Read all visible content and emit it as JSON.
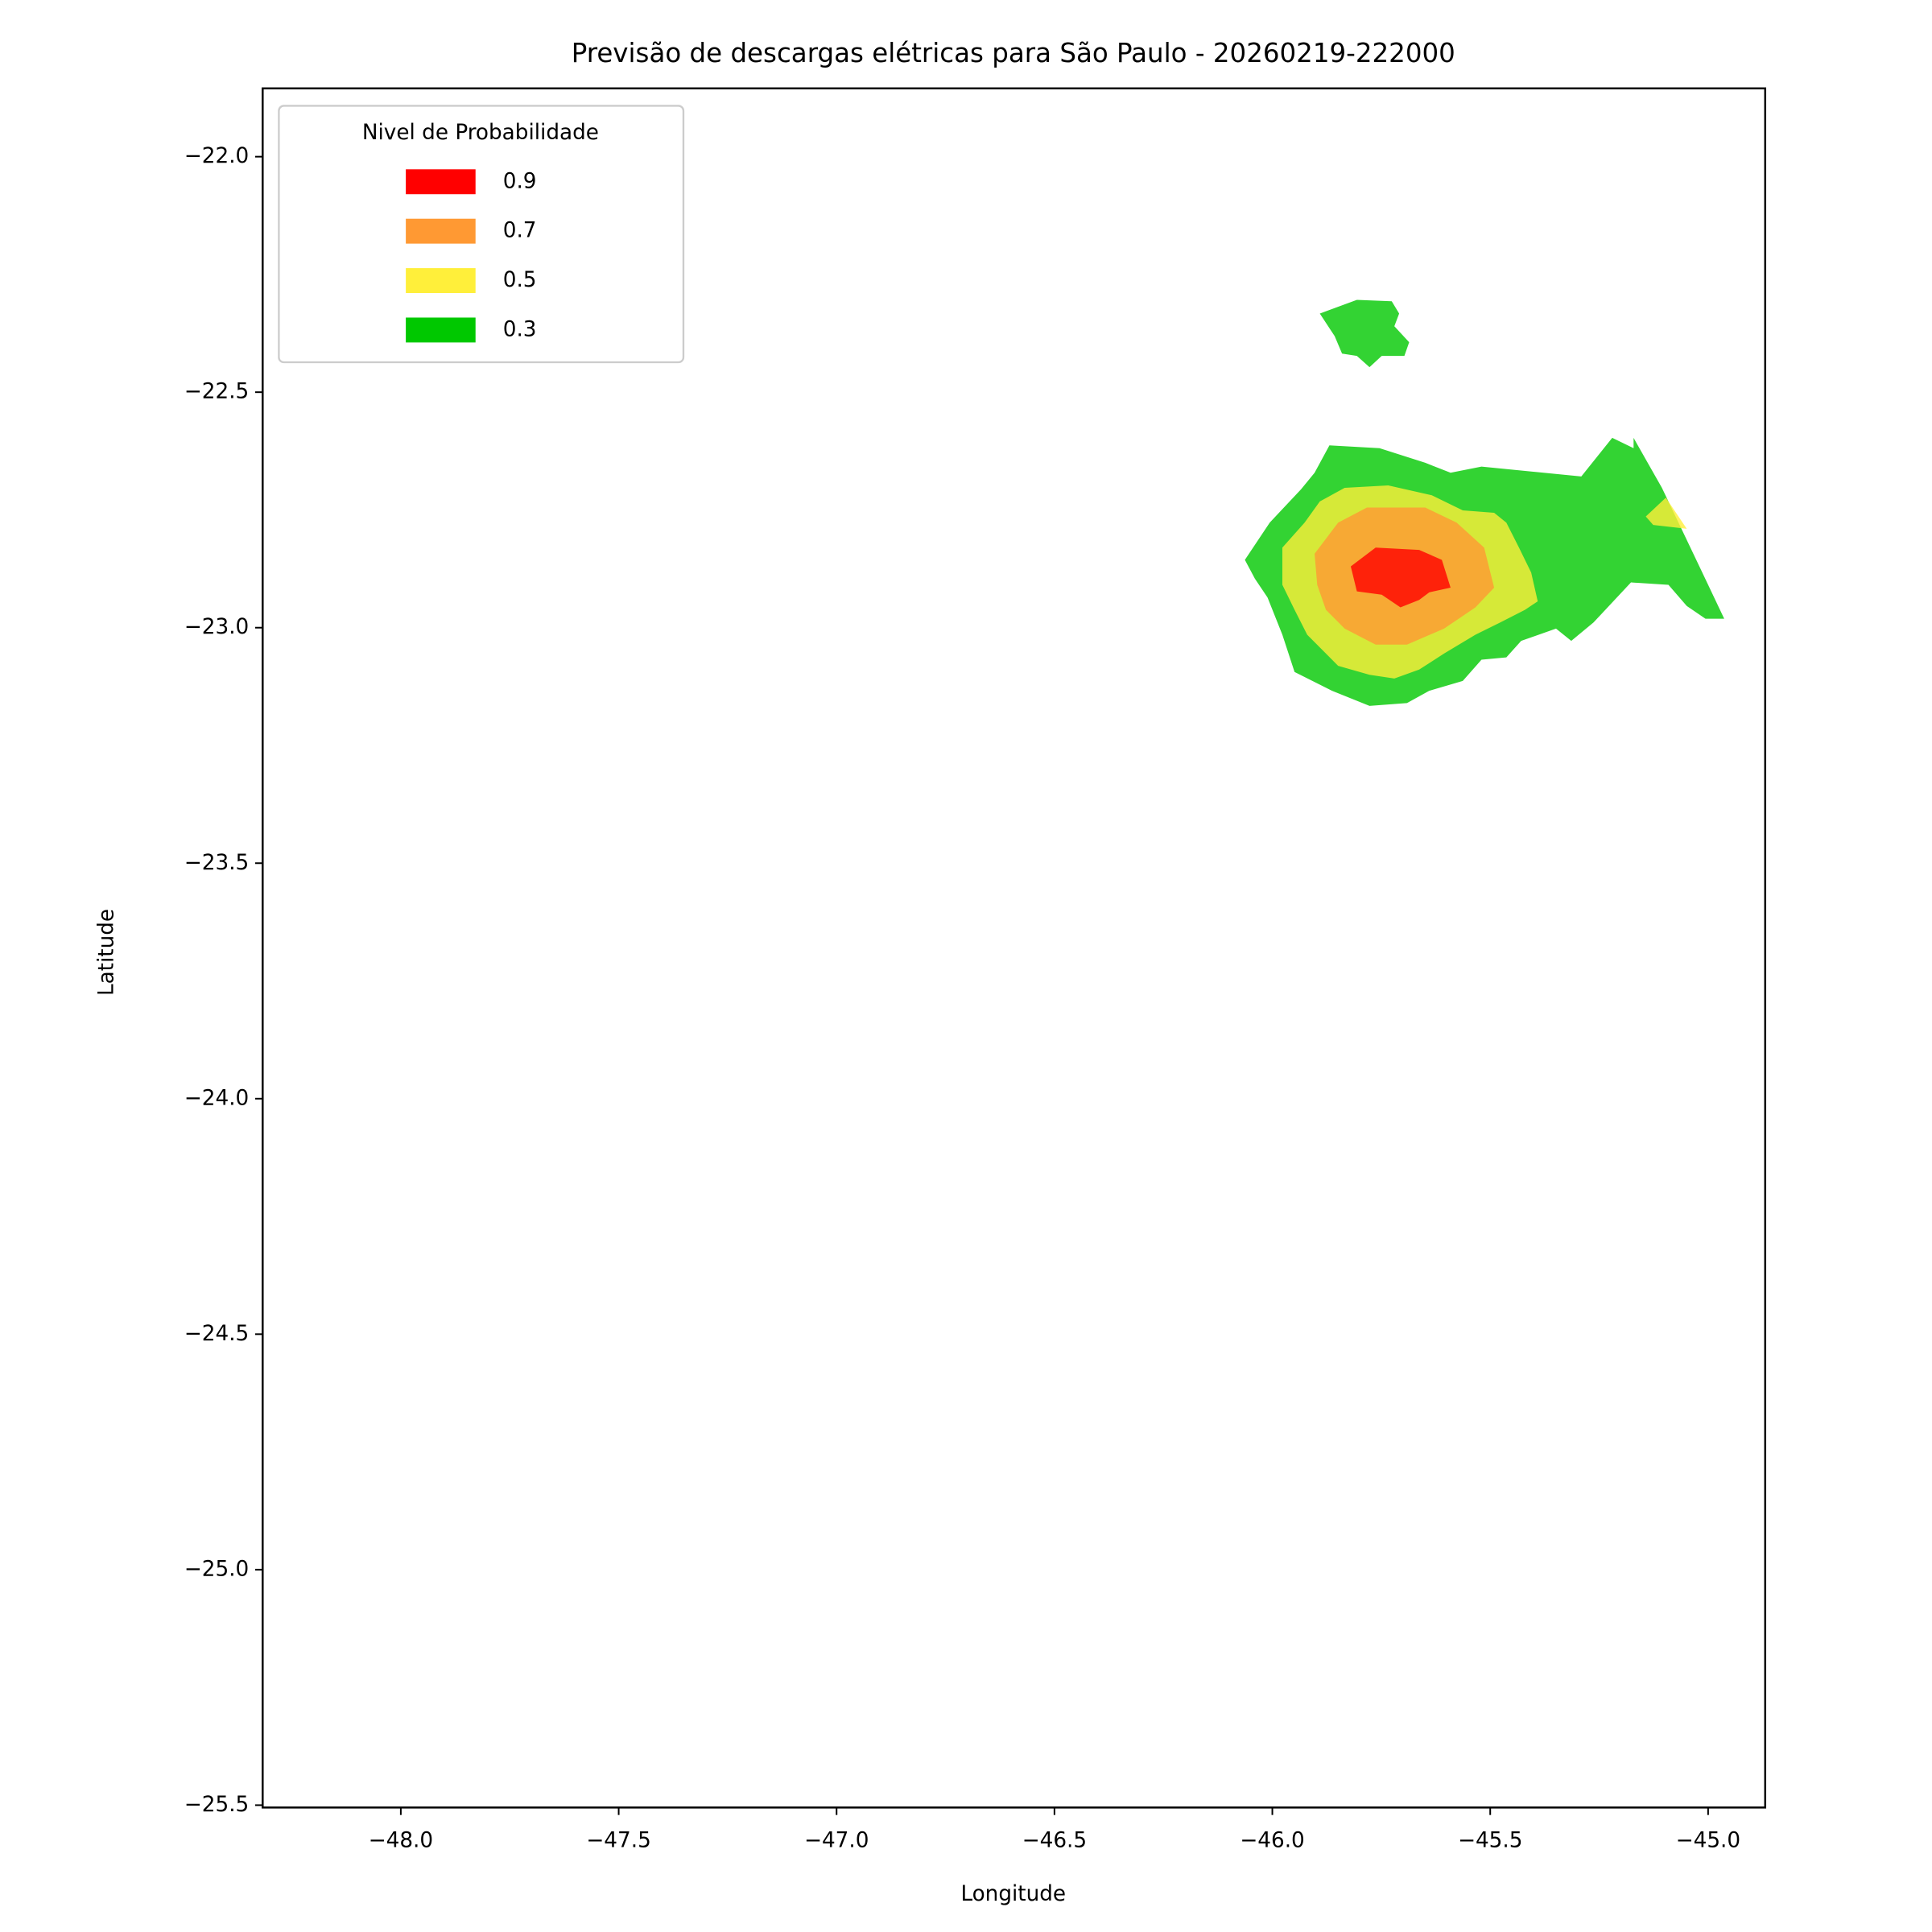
{
  "chart_data": {
    "type": "contour",
    "title": "Previsão de descargas elétricas para São Paulo - 20260219-222000",
    "xlabel": "Longitude",
    "ylabel": "Latitude",
    "xlim": [
      -48.317,
      -44.869
    ],
    "ylim": [
      -25.505,
      -21.855
    ],
    "xticks": [
      {
        "value": -48.0,
        "label": "−48.0"
      },
      {
        "value": -47.5,
        "label": "−47.5"
      },
      {
        "value": -47.0,
        "label": "−47.0"
      },
      {
        "value": -46.5,
        "label": "−46.5"
      },
      {
        "value": -46.0,
        "label": "−46.0"
      },
      {
        "value": -45.5,
        "label": "−45.5"
      },
      {
        "value": -45.0,
        "label": "−45.0"
      }
    ],
    "yticks": [
      {
        "value": -22.0,
        "label": "−22.0"
      },
      {
        "value": -22.5,
        "label": "−22.5"
      },
      {
        "value": -23.0,
        "label": "−23.0"
      },
      {
        "value": -23.5,
        "label": "−23.5"
      },
      {
        "value": -24.0,
        "label": "−24.0"
      },
      {
        "value": -24.5,
        "label": "−24.5"
      },
      {
        "value": -25.0,
        "label": "−25.0"
      },
      {
        "value": -25.5,
        "label": "−25.5"
      }
    ],
    "grid": false,
    "alpha": 0.8,
    "legend_title": "Nivel de Probabilidade",
    "legend_position": "upper left",
    "series": [
      {
        "name": "0.9",
        "color": "#ff0000",
        "regions": [
          {
            "x": [
              -45.82,
              -45.763,
              -45.663,
              -45.611,
              -45.591,
              -45.64,
              -45.663,
              -45.706,
              -45.749,
              -45.806
            ],
            "y": [
              -22.87,
              -22.83,
              -22.835,
              -22.856,
              -22.915,
              -22.925,
              -22.941,
              -22.957,
              -22.93,
              -22.923
            ]
          }
        ]
      },
      {
        "name": "0.7",
        "color": "#ff9933",
        "regions": [
          {
            "x": [
              -45.903,
              -45.849,
              -45.783,
              -45.649,
              -45.577,
              -45.514,
              -45.491,
              -45.534,
              -45.606,
              -45.691,
              -45.763,
              -45.834,
              -45.877,
              -45.897
            ],
            "y": [
              -22.843,
              -22.777,
              -22.745,
              -22.745,
              -22.777,
              -22.83,
              -22.915,
              -22.957,
              -23.002,
              -23.036,
              -23.036,
              -23.002,
              -22.962,
              -22.909
            ]
          }
        ]
      },
      {
        "name": "0.5",
        "color": "#ffef3a",
        "regions": [
          {
            "x": [
              -45.977,
              -45.926,
              -45.891,
              -45.834,
              -45.734,
              -45.634,
              -45.563,
              -45.491,
              -45.463,
              -45.434,
              -45.406,
              -45.391,
              -45.42,
              -45.477,
              -45.534,
              -45.606,
              -45.663,
              -45.72,
              -45.777,
              -45.849,
              -45.92,
              -45.949,
              -45.977
            ],
            "y": [
              -22.83,
              -22.777,
              -22.732,
              -22.703,
              -22.698,
              -22.719,
              -22.751,
              -22.756,
              -22.777,
              -22.83,
              -22.883,
              -22.944,
              -22.962,
              -22.989,
              -23.015,
              -23.055,
              -23.089,
              -23.108,
              -23.1,
              -23.081,
              -23.015,
              -22.962,
              -22.909
            ]
          },
          {
            "x": [
              -45.143,
              -45.097,
              -45.049,
              -45.126
            ],
            "y": [
              -22.764,
              -22.724,
              -22.79,
              -22.782
            ]
          }
        ]
      },
      {
        "name": "0.3",
        "color": "#00c800",
        "regions": [
          {
            "x": [
              -46.063,
              -46.006,
              -45.934,
              -45.903,
              -45.869,
              -45.754,
              -45.649,
              -45.591,
              -45.52,
              -45.291,
              -45.22,
              -45.171,
              -45.171,
              -45.106,
              -45.02,
              -44.963,
              -45.006,
              -45.049,
              -45.091,
              -45.177,
              -45.263,
              -45.314,
              -45.349,
              -45.429,
              -45.463,
              -45.52,
              -45.563,
              -45.64,
              -45.691,
              -45.777,
              -45.863,
              -45.949,
              -45.977,
              -46.011,
              -46.04
            ],
            "y": [
              -22.856,
              -22.777,
              -22.706,
              -22.671,
              -22.613,
              -22.619,
              -22.65,
              -22.671,
              -22.658,
              -22.679,
              -22.597,
              -22.619,
              -22.597,
              -22.703,
              -22.87,
              -22.981,
              -22.981,
              -22.954,
              -22.909,
              -22.904,
              -22.989,
              -23.028,
              -23.002,
              -23.028,
              -23.063,
              -23.068,
              -23.113,
              -23.134,
              -23.16,
              -23.166,
              -23.134,
              -23.094,
              -23.015,
              -22.936,
              -22.896
            ]
          },
          {
            "x": [
              -45.891,
              -45.806,
              -45.726,
              -45.709,
              -45.72,
              -45.686,
              -45.697,
              -45.749,
              -45.777,
              -45.806,
              -45.84,
              -45.857
            ],
            "y": [
              -22.333,
              -22.304,
              -22.307,
              -22.333,
              -22.36,
              -22.394,
              -22.423,
              -22.423,
              -22.447,
              -22.423,
              -22.418,
              -22.381
            ]
          }
        ]
      }
    ]
  }
}
